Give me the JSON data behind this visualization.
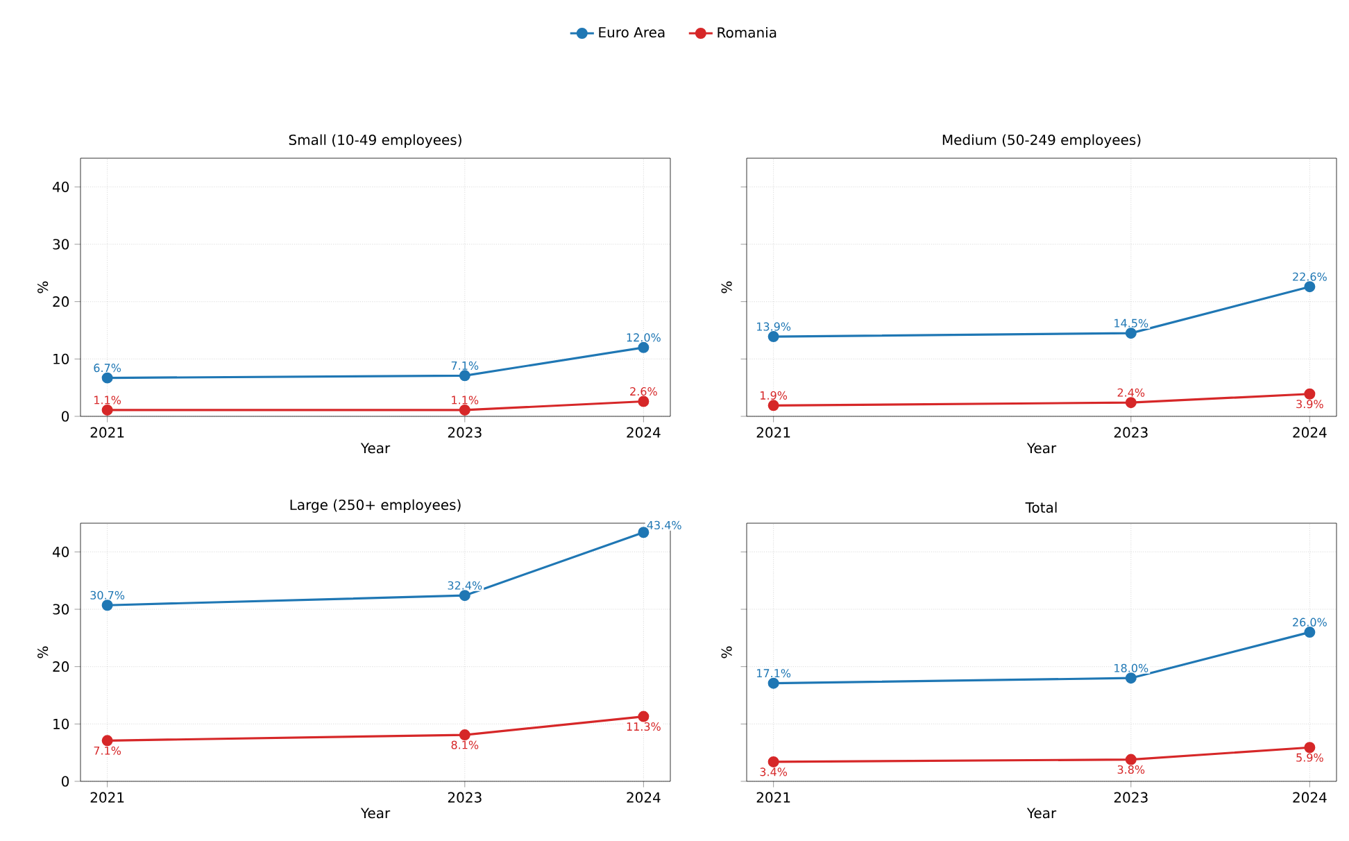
{
  "chart_data": [
    {
      "type": "line",
      "title": "Small (10-49 employees)",
      "xlabel": "Year",
      "ylabel": "%",
      "x": [
        2021,
        2023,
        2024
      ],
      "xlim": [
        2020.85,
        2024.15
      ],
      "xticks": [
        2021,
        2023,
        2024
      ],
      "ylim": [
        0,
        45
      ],
      "yticks": [
        0,
        10,
        20,
        30,
        40
      ],
      "grid": true,
      "legend": "top",
      "marker": "circle",
      "line_style": "solid",
      "series": [
        {
          "name": "Euro Area",
          "color": "#1f77b4",
          "values": [
            6.7,
            7.1,
            12.0
          ],
          "value_labels": [
            "6.7%",
            "7.1%",
            "12.0%"
          ]
        },
        {
          "name": "Romania",
          "color": "#d62728",
          "values": [
            1.1,
            1.1,
            2.6
          ],
          "value_labels": [
            "1.1%",
            "1.1%",
            "2.6%"
          ]
        }
      ]
    },
    {
      "type": "line",
      "title": "Medium (50-249 employees)",
      "xlabel": "Year",
      "ylabel": "%",
      "x": [
        2021,
        2023,
        2024
      ],
      "xlim": [
        2020.85,
        2024.15
      ],
      "xticks": [
        2021,
        2023,
        2024
      ],
      "ylim": [
        0,
        45
      ],
      "yticks": [
        0,
        10,
        20,
        30,
        40
      ],
      "tick_labels": "x",
      "grid": true,
      "marker": "circle",
      "line_style": "solid",
      "series": [
        {
          "color": "#1f77b4",
          "values": [
            13.9,
            14.5,
            22.6
          ],
          "value_labels": [
            "13.9%",
            "14.5%",
            "22.6%"
          ]
        },
        {
          "color": "#d62728",
          "values": [
            1.9,
            2.4,
            3.9
          ],
          "value_labels": [
            "1.9%",
            "2.4%",
            "3.9%"
          ]
        }
      ]
    },
    {
      "type": "line",
      "title": "Large (250+ employees)",
      "xlabel": "Year",
      "ylabel": "%",
      "x": [
        2021,
        2023,
        2024
      ],
      "xlim": [
        2020.85,
        2024.15
      ],
      "xticks": [
        2021,
        2023,
        2024
      ],
      "ylim": [
        0,
        45
      ],
      "yticks": [
        0,
        10,
        20,
        30,
        40
      ],
      "grid": true,
      "marker": "circle",
      "line_style": "solid",
      "series": [
        {
          "color": "#1f77b4",
          "values": [
            30.7,
            32.4,
            43.4
          ],
          "value_labels": [
            "30.7%",
            "32.4%",
            "43.4%"
          ]
        },
        {
          "color": "#d62728",
          "values": [
            7.1,
            8.1,
            11.3
          ],
          "value_labels": [
            "7.1%",
            "8.1%",
            "11.3%"
          ]
        }
      ]
    },
    {
      "type": "line",
      "title": "Total",
      "xlabel": "Year",
      "ylabel": "%",
      "x": [
        2021,
        2023,
        2024
      ],
      "xlim": [
        2020.85,
        2024.15
      ],
      "xticks": [
        2021,
        2023,
        2024
      ],
      "ylim": [
        0,
        45
      ],
      "yticks": [
        0,
        10,
        20,
        30,
        40
      ],
      "tick_labels": "x",
      "grid": true,
      "marker": "circle",
      "line_style": "solid",
      "series": [
        {
          "color": "#1f77b4",
          "values": [
            17.1,
            18.0,
            26.0
          ],
          "value_labels": [
            "17.1%",
            "18.0%",
            "26.0%"
          ]
        },
        {
          "color": "#d62728",
          "values": [
            3.4,
            3.8,
            5.9
          ],
          "value_labels": [
            "3.4%",
            "3.8%",
            "5.9%"
          ]
        }
      ]
    }
  ]
}
